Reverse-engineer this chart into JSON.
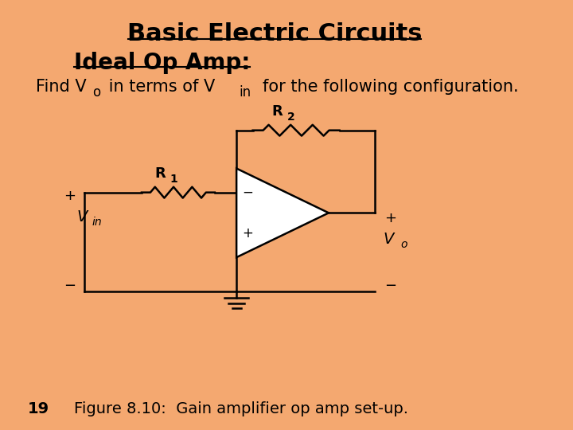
{
  "bg_color": "#F4A870",
  "title": "Basic Electric Circuits",
  "subtitle": "Ideal Op Amp:",
  "fig_caption_num": "19",
  "fig_caption": "Figure 8.10:  Gain amplifier op amp set-up.",
  "text_color": "#000000",
  "line_color": "#000000",
  "op_amp_fill": "#FFFFFF",
  "font_size_title": 22,
  "font_size_subtitle": 20,
  "font_size_desc": 15,
  "font_size_caption": 14,
  "font_size_labels": 13
}
